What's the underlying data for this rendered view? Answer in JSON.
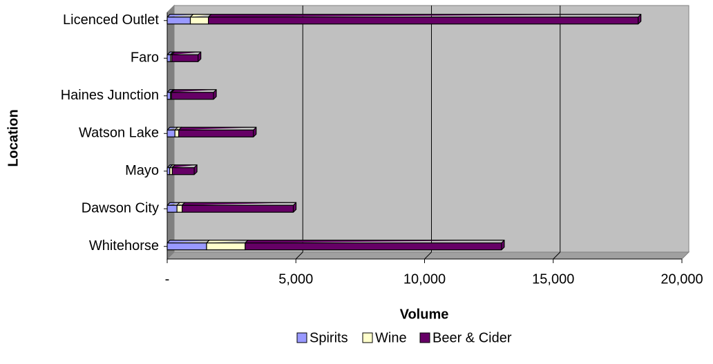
{
  "chart_data": {
    "type": "bar",
    "orientation": "horizontal",
    "stacked": true,
    "x_label": "Volume",
    "y_label": "Location",
    "categories": [
      "Whitehorse",
      "Dawson City",
      "Mayo",
      "Watson Lake",
      "Haines Junction",
      "Faro",
      "Licenced Outlet"
    ],
    "series": [
      {
        "name": "Spirits",
        "color": "#9999ff",
        "values": [
          1530,
          380,
          100,
          300,
          130,
          130,
          900
        ]
      },
      {
        "name": "Wine",
        "color": "#ffffcc",
        "values": [
          1500,
          200,
          100,
          150,
          40,
          50,
          700
        ]
      },
      {
        "name": "Beer & Cider",
        "color": "#660066",
        "values": [
          9960,
          4320,
          850,
          2900,
          1630,
          1020,
          16700
        ]
      }
    ],
    "xlim": [
      0,
      20000
    ],
    "xticks": [
      {
        "value": 0,
        "label": "-"
      },
      {
        "value": 5000,
        "label": "5,000"
      },
      {
        "value": 10000,
        "label": "10,000"
      },
      {
        "value": 15000,
        "label": "15,000"
      },
      {
        "value": 20000,
        "label": "20,000"
      }
    ],
    "grid": true,
    "legend": "bottom"
  }
}
